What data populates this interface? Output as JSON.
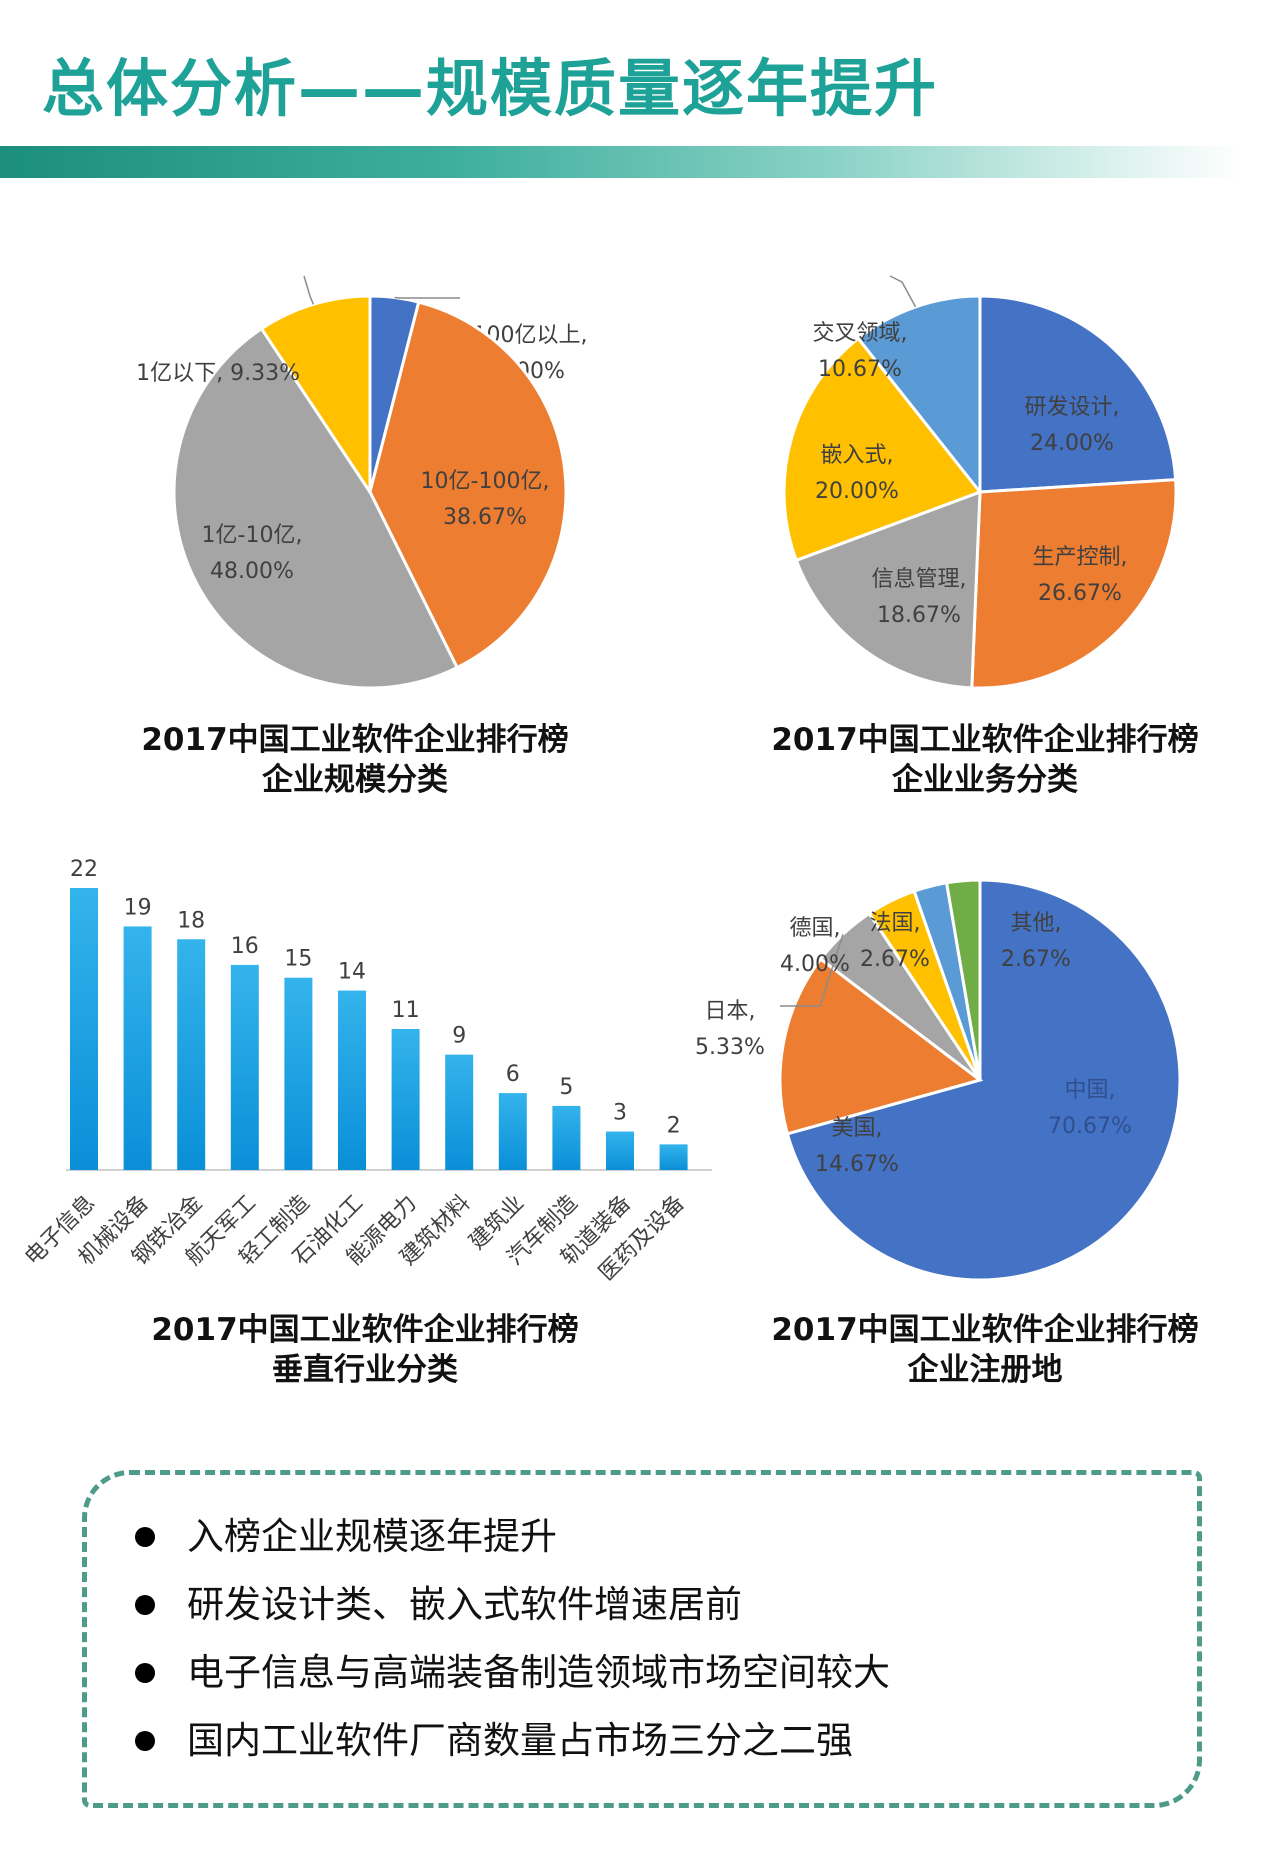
{
  "title": "总体分析——规模质量逐年提升",
  "summary": {
    "items": [
      "入榜企业规模逐年提升",
      "研发设计类、嵌入式软件增速居前",
      "电子信息与高端装备制造领域市场空间较大",
      "国内工业软件厂商数量占市场三分之二强"
    ]
  },
  "chart_data": [
    {
      "type": "pie",
      "title_lines": [
        "2017中国工业软件企业排行榜",
        "企业规模分类"
      ],
      "slices": [
        {
          "label": "100亿以上",
          "value": 4.0,
          "display": "4.00%",
          "color": "#4472c4"
        },
        {
          "label": "10亿-100亿",
          "value": 38.67,
          "display": "38.67%",
          "color": "#ed7d31"
        },
        {
          "label": "1亿-10亿",
          "value": 48.0,
          "display": "48.00%",
          "color": "#a5a5a5"
        },
        {
          "label": "1亿以下",
          "value": 9.33,
          "display": "9.33%",
          "color": "#ffc000"
        }
      ]
    },
    {
      "type": "pie",
      "title_lines": [
        "2017中国工业软件企业排行榜",
        "企业业务分类"
      ],
      "slices": [
        {
          "label": "研发设计",
          "value": 24.0,
          "display": "24.00%",
          "color": "#4472c4"
        },
        {
          "label": "生产控制",
          "value": 26.67,
          "display": "26.67%",
          "color": "#ed7d31"
        },
        {
          "label": "信息管理",
          "value": 18.67,
          "display": "18.67%",
          "color": "#a5a5a5"
        },
        {
          "label": "嵌入式",
          "value": 20.0,
          "display": "20.00%",
          "color": "#ffc000"
        },
        {
          "label": "交叉领域",
          "value": 10.67,
          "display": "10.67%",
          "color": "#5b9bd5"
        }
      ]
    },
    {
      "type": "bar",
      "title_lines": [
        "2017中国工业软件企业排行榜",
        "垂直行业分类"
      ],
      "categories": [
        "电子信息",
        "机械设备",
        "钢铁冶金",
        "航天军工",
        "轻工制造",
        "石油化工",
        "能源电力",
        "建筑材料",
        "建筑业",
        "汽车制造",
        "轨道装备",
        "医药及设备"
      ],
      "values": [
        22,
        19,
        18,
        16,
        15,
        14,
        11,
        9,
        6,
        5,
        3,
        2
      ],
      "ylim": [
        0,
        22
      ],
      "colors": {
        "top": "#34b4ec",
        "bottom": "#0a8fd8"
      }
    },
    {
      "type": "pie",
      "title_lines": [
        "2017中国工业软件企业排行榜",
        "企业注册地"
      ],
      "slices": [
        {
          "label": "中国",
          "value": 70.67,
          "display": "70.67%",
          "color": "#4472c4"
        },
        {
          "label": "美国",
          "value": 14.67,
          "display": "14.67%",
          "color": "#ed7d31"
        },
        {
          "label": "日本",
          "value": 5.33,
          "display": "5.33%",
          "color": "#a5a5a5"
        },
        {
          "label": "德国",
          "value": 4.0,
          "display": "4.00%",
          "color": "#ffc000"
        },
        {
          "label": "法国",
          "value": 2.67,
          "display": "2.67%",
          "color": "#5b9bd5"
        },
        {
          "label": "其他",
          "value": 2.67,
          "display": "2.67%",
          "color": "#70ad47"
        }
      ]
    }
  ]
}
